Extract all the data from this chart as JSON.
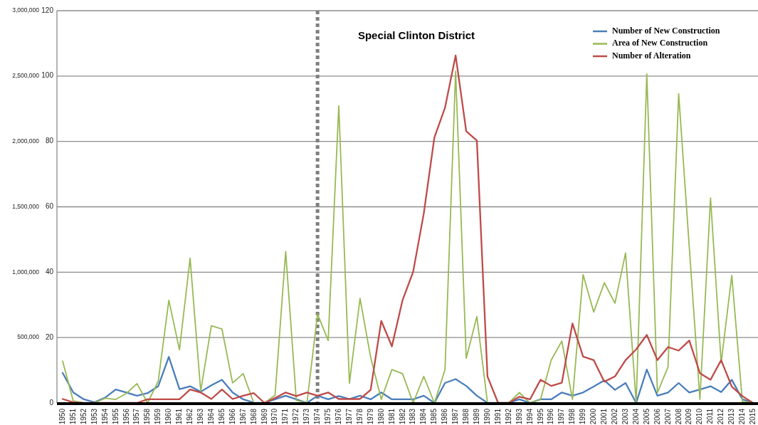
{
  "chart_data": {
    "type": "line",
    "title": "Special Clinton District",
    "categories": [
      "1950",
      "1951",
      "1952",
      "1953",
      "1954",
      "1955",
      "1956",
      "1957",
      "1958",
      "1959",
      "1960",
      "1961",
      "1962",
      "1963",
      "1964",
      "1965",
      "1966",
      "1967",
      "1968",
      "1969",
      "1970",
      "1971",
      "1972",
      "1973",
      "1974",
      "1975",
      "1976",
      "1977",
      "1978",
      "1979",
      "1980",
      "1981",
      "1982",
      "1983",
      "1984",
      "1985",
      "1986",
      "1987",
      "1988",
      "1989",
      "1990",
      "1991",
      "1992",
      "1993",
      "1994",
      "1995",
      "1996",
      "1997",
      "1998",
      "1999",
      "2000",
      "2001",
      "2002",
      "2003",
      "2004",
      "2005",
      "2006",
      "2007",
      "2008",
      "2009",
      "2010",
      "2011",
      "2012",
      "2013",
      "2014",
      "2015"
    ],
    "series": [
      {
        "name": "Number of New Construction",
        "color": "#4a7ebb",
        "values": [
          9.2,
          3.2,
          1.1,
          0.2,
          1.6,
          4.1,
          3.2,
          2.2,
          3,
          5.1,
          14.1,
          4.2,
          5.1,
          3.4,
          5.4,
          7.1,
          3.2,
          1.1,
          0.1,
          0,
          1.1,
          2.2,
          1.1,
          0,
          2.2,
          1.1,
          2.1,
          1.2,
          2.2,
          1.1,
          3.2,
          1.1,
          1.1,
          1.1,
          2.2,
          0,
          6.1,
          7.3,
          5.2,
          2.2,
          0,
          0,
          0,
          1.1,
          0,
          1.1,
          1.1,
          3.2,
          2.2,
          3.2,
          5,
          6.9,
          4,
          6.1,
          0,
          10.2,
          2.2,
          3.2,
          6.1,
          3.2,
          4.1,
          5.1,
          3.3,
          7.1,
          1.1,
          0
        ]
      },
      {
        "name": "Area of New Construction",
        "color": "#98b954",
        "axis": "y2",
        "values": [
          320000,
          15000,
          0,
          0,
          36000,
          27000,
          72000,
          148000,
          0,
          166000,
          785000,
          406000,
          1107000,
          90000,
          590000,
          565000,
          153000,
          224000,
          0,
          0,
          58000,
          1158000,
          20000,
          0,
          680000,
          477000,
          2272000,
          151000,
          799000,
          349000,
          27000,
          255000,
          224000,
          0,
          203000,
          0,
          255000,
          2537000,
          342000,
          660000,
          0,
          0,
          0,
          79000,
          0,
          27000,
          328000,
          473000,
          27000,
          981000,
          695000,
          919000,
          763000,
          1147000,
          0,
          2516000,
          79000,
          276000,
          2365000,
          1190000,
          27000,
          1567000,
          307000,
          975000,
          10000,
          0
        ]
      },
      {
        "name": "Number of Alteration",
        "color": "#be4b48",
        "values": [
          1.2,
          0.2,
          0,
          0,
          0,
          0,
          0,
          0,
          1.1,
          1.1,
          1.1,
          1.1,
          4.1,
          3.2,
          1.2,
          4.1,
          1.2,
          2.2,
          3,
          0,
          1.5,
          3.2,
          2.1,
          3.2,
          2.2,
          3.2,
          1.2,
          1.2,
          1.2,
          4,
          25.1,
          17.3,
          31.4,
          40.1,
          57.9,
          81.2,
          90.3,
          106.3,
          83.1,
          80.3,
          8.1,
          0,
          0,
          1.9,
          1.1,
          7.1,
          5.2,
          6.2,
          24.3,
          14.2,
          13.1,
          6.5,
          8.1,
          13.1,
          16.4,
          20.8,
          13.1,
          17.1,
          16,
          19.1,
          9.1,
          7.1,
          13.1,
          5,
          2.1,
          0
        ]
      }
    ],
    "ylim": [
      0,
      120
    ],
    "yticks": [
      0,
      20,
      40,
      60,
      80,
      100,
      120
    ],
    "y2lim": [
      0,
      3000000
    ],
    "y2ticks": [
      {
        "value": 500000,
        "label": "500,000"
      },
      {
        "value": 1000000,
        "label": "1,000,000"
      },
      {
        "value": 1500000,
        "label": "1,500,000"
      },
      {
        "value": 2000000,
        "label": "2,000,000"
      },
      {
        "value": 2500000,
        "label": "2,500,000"
      },
      {
        "value": 3000000,
        "label": "3,000,000"
      }
    ],
    "ref_lines": [
      {
        "axis": "x",
        "value": "1974",
        "color": "#808080",
        "line_style": "dotted"
      }
    ],
    "grid": "y",
    "legend": "top right",
    "marker": "none",
    "line_style": "solid"
  }
}
